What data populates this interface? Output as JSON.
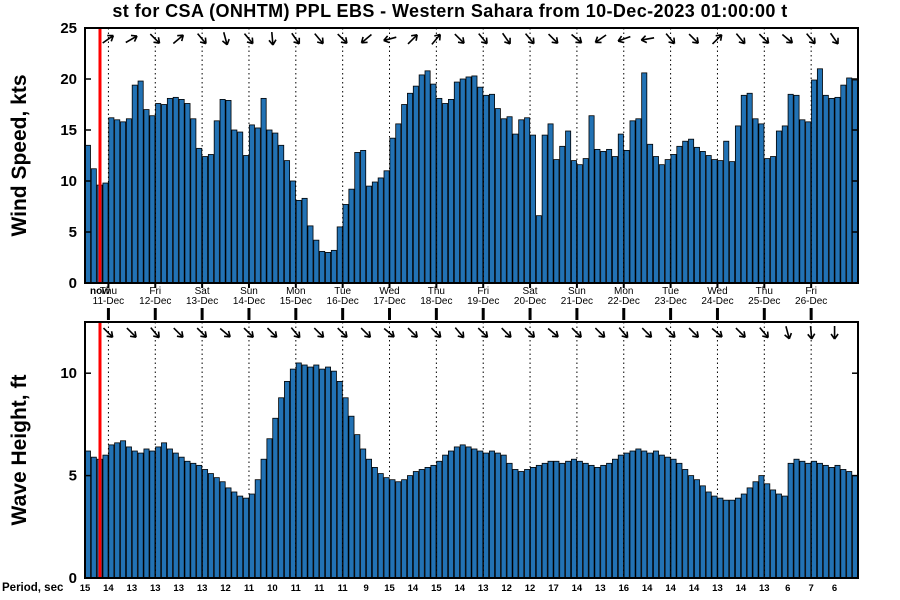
{
  "title": "st for CSA (ONHTM) PPL EBS  - Western Sahara from 10-Dec-2023 01:00:00 t",
  "now": {
    "label": "now",
    "offset_days": 0.32
  },
  "colors": {
    "bar_fill": "#2272b4",
    "bar_edge": "#000000",
    "now_line": "#ff0000",
    "axis": "#000000"
  },
  "x_axis": {
    "days_total": 16.5,
    "tick_interval_hours": 12,
    "day_labels": [
      {
        "dow": "Thu",
        "date": "11-Dec"
      },
      {
        "dow": "Fri",
        "date": "12-Dec"
      },
      {
        "dow": "Sat",
        "date": "13-Dec"
      },
      {
        "dow": "Sun",
        "date": "14-Dec"
      },
      {
        "dow": "Mon",
        "date": "15-Dec"
      },
      {
        "dow": "Tue",
        "date": "16-Dec"
      },
      {
        "dow": "Wed",
        "date": "17-Dec"
      },
      {
        "dow": "Thu",
        "date": "18-Dec"
      },
      {
        "dow": "Fri",
        "date": "19-Dec"
      },
      {
        "dow": "Sat",
        "date": "20-Dec"
      },
      {
        "dow": "Sun",
        "date": "21-Dec"
      },
      {
        "dow": "Mon",
        "date": "22-Dec"
      },
      {
        "dow": "Tue",
        "date": "23-Dec"
      },
      {
        "dow": "Wed",
        "date": "24-Dec"
      },
      {
        "dow": "Thu",
        "date": "25-Dec"
      },
      {
        "dow": "Fri",
        "date": "26-Dec"
      }
    ]
  },
  "chart_data": [
    {
      "type": "bar",
      "name": "wind-speed",
      "ylabel": "Wind Speed, kts",
      "ylim": [
        0,
        25
      ],
      "yticks": [
        0,
        5,
        10,
        15,
        20,
        25
      ],
      "step_hours": 3,
      "values": [
        13.5,
        11.2,
        9.6,
        9.8,
        16.2,
        16.0,
        15.8,
        16.1,
        19.4,
        19.8,
        17.0,
        16.4,
        17.6,
        17.5,
        18.1,
        18.2,
        18.0,
        17.6,
        16.1,
        13.2,
        12.4,
        12.6,
        15.9,
        18.0,
        17.9,
        15.0,
        14.8,
        12.5,
        15.5,
        15.2,
        18.1,
        15.0,
        14.7,
        13.5,
        12.0,
        10.0,
        8.1,
        8.3,
        5.6,
        4.2,
        3.1,
        3.0,
        3.2,
        5.5,
        7.7,
        9.2,
        12.8,
        13.0,
        9.5,
        9.9,
        10.3,
        11.0,
        14.2,
        15.6,
        17.5,
        18.6,
        19.3,
        20.4,
        20.8,
        19.5,
        18.1,
        17.6,
        18.0,
        19.7,
        20.0,
        20.2,
        20.3,
        19.2,
        18.4,
        18.5,
        17.1,
        16.1,
        16.3,
        14.6,
        16.0,
        16.2,
        14.5,
        6.6,
        14.5,
        15.6,
        12.1,
        13.4,
        14.9,
        12.0,
        11.6,
        12.2,
        16.4,
        13.1,
        12.9,
        13.1,
        12.4,
        14.6,
        13.0,
        15.9,
        16.1,
        20.6,
        13.6,
        12.4,
        11.6,
        12.1,
        12.6,
        13.4,
        13.9,
        14.1,
        13.3,
        12.9,
        12.5,
        12.1,
        12.0,
        13.9,
        11.9,
        15.4,
        18.4,
        18.6,
        16.1,
        15.6,
        12.2,
        12.4,
        14.9,
        15.4,
        18.5,
        18.4,
        16.0,
        15.8,
        19.9,
        21.0,
        18.4,
        18.1,
        18.2,
        19.4,
        20.1,
        19.9
      ],
      "arrow_dirs_deg": [
        50,
        -35,
        -30,
        45,
        -40,
        50,
        75,
        50,
        85,
        55,
        50,
        45,
        140,
        165,
        -45,
        -50,
        45,
        50,
        55,
        50,
        45,
        40,
        145,
        160,
        170,
        50,
        45,
        -45,
        50,
        45,
        40,
        50,
        55
      ]
    },
    {
      "type": "bar",
      "name": "wave-height",
      "ylabel": "Wave Height, ft",
      "ylim": [
        0,
        12.5
      ],
      "yticks": [
        0,
        5,
        10
      ],
      "step_hours": 3,
      "values": [
        6.2,
        5.9,
        5.8,
        6.0,
        6.5,
        6.6,
        6.7,
        6.4,
        6.2,
        6.1,
        6.3,
        6.2,
        6.4,
        6.6,
        6.3,
        6.1,
        5.9,
        5.7,
        5.6,
        5.5,
        5.3,
        5.1,
        4.9,
        4.7,
        4.4,
        4.2,
        4.0,
        3.9,
        4.1,
        4.8,
        5.8,
        6.8,
        7.8,
        8.8,
        9.6,
        10.2,
        10.5,
        10.4,
        10.3,
        10.4,
        10.2,
        10.3,
        10.1,
        9.6,
        8.8,
        7.9,
        7.0,
        6.3,
        5.8,
        5.4,
        5.1,
        4.9,
        4.8,
        4.7,
        4.8,
        5.0,
        5.2,
        5.3,
        5.4,
        5.5,
        5.7,
        6.0,
        6.2,
        6.4,
        6.5,
        6.4,
        6.3,
        6.2,
        6.1,
        6.2,
        6.1,
        6.0,
        5.6,
        5.3,
        5.2,
        5.3,
        5.4,
        5.5,
        5.6,
        5.7,
        5.7,
        5.6,
        5.7,
        5.8,
        5.7,
        5.6,
        5.5,
        5.4,
        5.5,
        5.6,
        5.8,
        6.0,
        6.1,
        6.2,
        6.3,
        6.2,
        6.1,
        6.2,
        6.0,
        5.9,
        5.8,
        5.6,
        5.3,
        5.0,
        4.8,
        4.5,
        4.2,
        4.0,
        3.9,
        3.8,
        3.8,
        3.9,
        4.1,
        4.4,
        4.7,
        5.0,
        4.6,
        4.3,
        4.1,
        4.0,
        5.6,
        5.8,
        5.7,
        5.6,
        5.7,
        5.6,
        5.5,
        5.4,
        5.5,
        5.3,
        5.2,
        5.0
      ],
      "arrow_dirs_deg": [
        45,
        45,
        45,
        50,
        45,
        45,
        40,
        45,
        45,
        50,
        45,
        45,
        45,
        40,
        45,
        45,
        50,
        45,
        45,
        45,
        40,
        45,
        45,
        50,
        45,
        45,
        45,
        40,
        45,
        50,
        75,
        85,
        90
      ]
    }
  ],
  "period_axis": {
    "label": "Period, sec",
    "values": [
      15,
      14,
      13,
      13,
      13,
      13,
      12,
      11,
      10,
      11,
      11,
      11,
      9,
      15,
      14,
      15,
      14,
      13,
      12,
      12,
      17,
      14,
      13,
      16,
      14,
      14,
      14,
      13,
      14,
      13,
      6,
      7,
      6
    ]
  }
}
